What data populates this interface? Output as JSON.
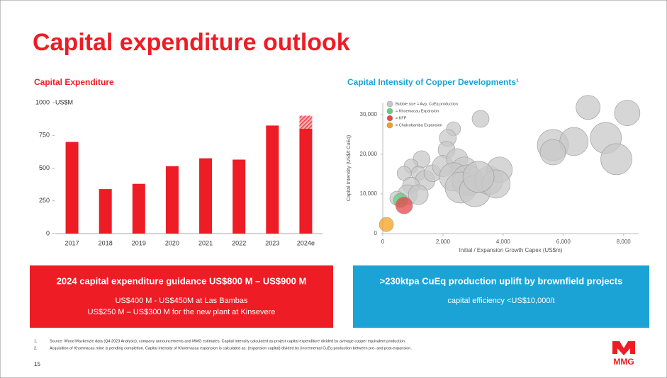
{
  "title": "Capital expenditure outlook",
  "chart_data": [
    {
      "type": "bar",
      "title": "Capital Expenditure",
      "y_unit": "US$M",
      "categories": [
        "2017",
        "2018",
        "2019",
        "2020",
        "2021",
        "2022",
        "2023",
        "2024e"
      ],
      "series": [
        {
          "color": "#ee1c25",
          "values": [
            700,
            340,
            380,
            515,
            575,
            565,
            825,
            800
          ]
        },
        {
          "color": "#ee1c25",
          "pattern": "hatch",
          "values": [
            null,
            null,
            null,
            null,
            null,
            null,
            null,
            100
          ]
        }
      ],
      "ylim": [
        0,
        1000
      ],
      "yticks": [
        0,
        250,
        500,
        750,
        1000
      ],
      "grid": false
    },
    {
      "type": "scatter",
      "title": "Capital Intensity of Copper Developments¹",
      "x_label": "Initial / Expansion Growth Capex (US$m)",
      "y_label": "Capital Intensity (US$/t CuEq)",
      "legend": "upper left",
      "xlim": [
        0,
        8500
      ],
      "xticks": [
        0,
        {
          "value": 2000,
          "label": "2,000"
        },
        {
          "value": 4000,
          "label": "4,000"
        },
        {
          "value": 6000,
          "label": "6,000"
        },
        {
          "value": 8000,
          "label": "8,000"
        }
      ],
      "ylim": [
        0,
        33000
      ],
      "yticks": [
        0,
        {
          "value": 10000,
          "label": "10,000"
        },
        {
          "value": 20000,
          "label": "20,000"
        },
        {
          "value": 30000,
          "label": "30,000"
        }
      ],
      "series": [
        {
          "name": "Bubble size = Avg. CuEq production",
          "color": "#c8c8c8",
          "x": [
            6820,
            8120,
            3250,
            2350,
            2160,
            2120,
            5650,
            6350,
            7410,
            7760,
            5650,
            1290,
            940,
            710,
            1180,
            1410,
            1650,
            940,
            820,
            1180,
            470,
            2000,
            2470,
            2710,
            2350,
            2820,
            2590,
            3060,
            3530,
            3880,
            3760,
            3180
          ],
          "y": [
            31800,
            30400,
            28900,
            26400,
            24100,
            21100,
            22300,
            23200,
            24100,
            18750,
            20500,
            18750,
            17000,
            15200,
            15200,
            13400,
            15200,
            12100,
            9800,
            9800,
            8900,
            17000,
            18750,
            16100,
            14300,
            13400,
            11600,
            10700,
            13400,
            16100,
            12500,
            14300
          ],
          "sizes": [
            17,
            18,
            12,
            10,
            12,
            12,
            22,
            20,
            22,
            22,
            18,
            12,
            10,
            10,
            10,
            14,
            12,
            12,
            14,
            14,
            10,
            15,
            15,
            18,
            20,
            22,
            22,
            22,
            20,
            18,
            20,
            22
          ]
        },
        {
          "name": "= Khoemacau Expansion",
          "color": "#5fd17a",
          "x": [
            590
          ],
          "y": [
            8400
          ],
          "sizes": [
            10
          ]
        },
        {
          "name": "= KFP",
          "color": "#e8464a",
          "x": [
            710
          ],
          "y": [
            7100
          ],
          "sizes": [
            12
          ]
        },
        {
          "name": "= Chalcobamba Expansion",
          "color": "#f5a11c",
          "x": [
            120
          ],
          "y": [
            2300
          ],
          "sizes": [
            10
          ]
        }
      ]
    }
  ],
  "boxes": [
    {
      "heading": "2024 capital expenditure guidance US$800 M – US$900 M",
      "lines": [
        "US$400 M - US$450M at Las Bambas",
        "US$250 M – US$300 M for the new plant at Kinsevere"
      ]
    },
    {
      "heading": ">230ktpa CuEq production uplift by brownfield projects",
      "lines": [
        "capital efficiency <US$10,000/t"
      ]
    }
  ],
  "footnotes": [
    {
      "number": "1.",
      "text": "Source: Wood Mackenzie data (Q4 2023 Analysis), company announcements and MMG estimates. Capital Intensity calculated as project capital expenditure divided by average copper equivalent production."
    },
    {
      "number": "2.",
      "text": "Acquisition of Khoemacau mine is pending completion. Capital intensity of Khoemacau expansion is calculated as: (expansion capital) divided by (incremental CuEq production between pre- and post-expansion."
    }
  ],
  "page_number": "15",
  "logo": "MMG"
}
